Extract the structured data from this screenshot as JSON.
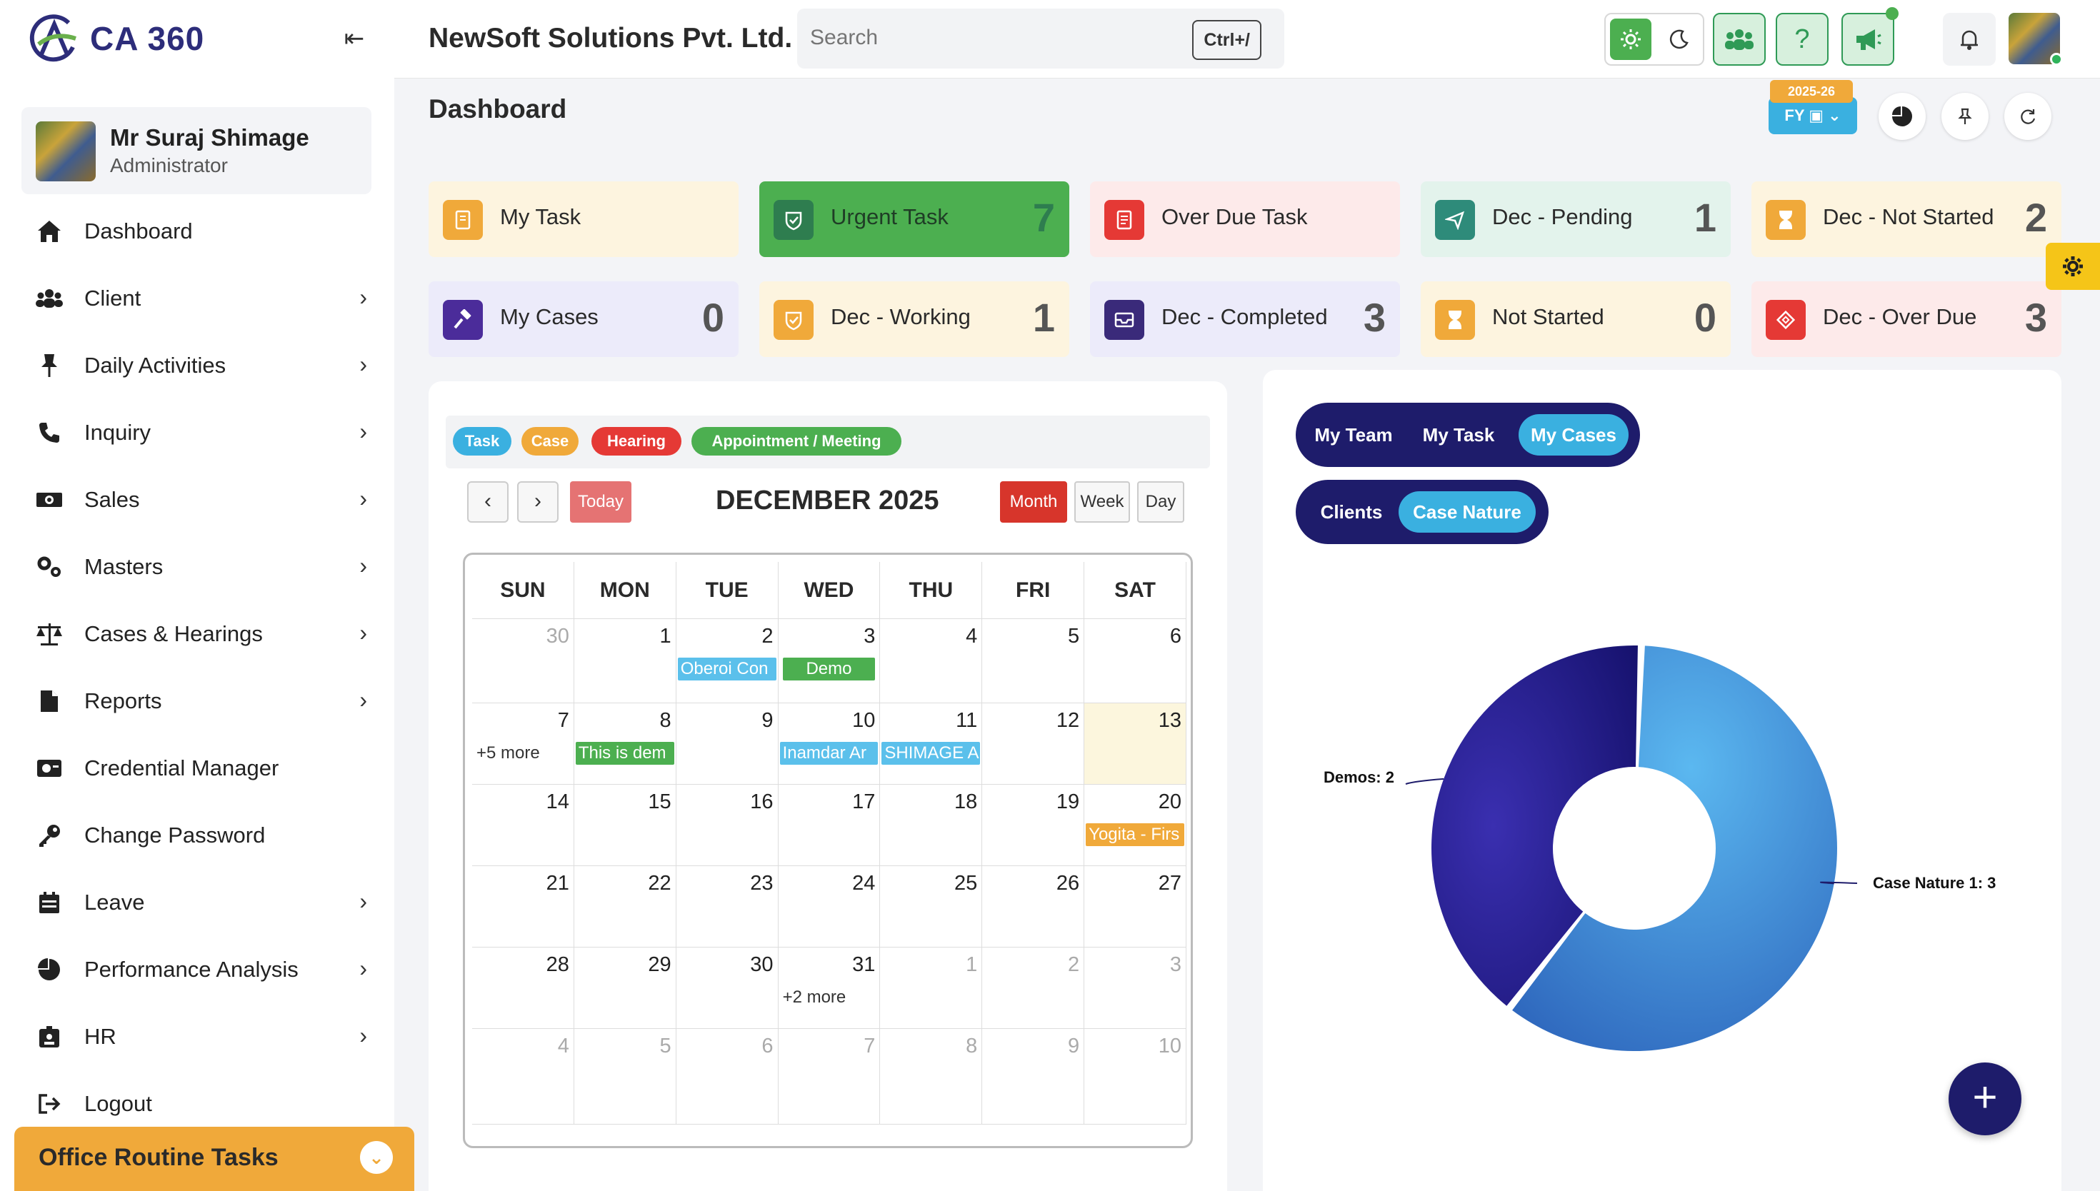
{
  "app": {
    "logo_text": "CA 360"
  },
  "profile": {
    "name": "Mr Suraj Shimage",
    "role": "Administrator"
  },
  "sidebar": {
    "items": [
      {
        "label": "Dashboard",
        "icon": "home-icon",
        "has_submenu": false
      },
      {
        "label": "Client",
        "icon": "users-icon",
        "has_submenu": true
      },
      {
        "label": "Daily Activities",
        "icon": "pin-icon",
        "has_submenu": true
      },
      {
        "label": "Inquiry",
        "icon": "phone-icon",
        "has_submenu": true
      },
      {
        "label": "Sales",
        "icon": "money-icon",
        "has_submenu": true
      },
      {
        "label": "Masters",
        "icon": "cogs-icon",
        "has_submenu": true
      },
      {
        "label": "Cases & Hearings",
        "icon": "scale-icon",
        "has_submenu": true
      },
      {
        "label": "Reports",
        "icon": "file-icon",
        "has_submenu": true
      },
      {
        "label": "Credential Manager",
        "icon": "id-card-icon",
        "has_submenu": false
      },
      {
        "label": "Change Password",
        "icon": "key-icon",
        "has_submenu": false
      },
      {
        "label": "Leave",
        "icon": "calendar-icon",
        "has_submenu": true
      },
      {
        "label": "Performance Analysis",
        "icon": "pie-icon",
        "has_submenu": true
      },
      {
        "label": "HR",
        "icon": "badge-icon",
        "has_submenu": true
      },
      {
        "label": "Logout",
        "icon": "logout-icon",
        "has_submenu": false
      }
    ],
    "office_routine": "Office Routine Tasks"
  },
  "topbar": {
    "company": "NewSoft Solutions Pvt. Ltd.",
    "search_placeholder": "Search",
    "search_shortcut": "Ctrl+/"
  },
  "dashboard": {
    "title": "Dashboard",
    "fy_year": "2025-26",
    "fy_label": "FY"
  },
  "cards": [
    {
      "label": "My Task",
      "value": "",
      "bg": "#fdf4df",
      "icon_bg": "#f0a93a",
      "icon": "notebook-icon"
    },
    {
      "label": "Urgent Task",
      "value": "7",
      "bg": "#4caf50",
      "icon_bg": "#2e7d4f",
      "icon": "shield-icon"
    },
    {
      "label": "Over Due Task",
      "value": "",
      "bg": "#fdeaea",
      "icon_bg": "#e53935",
      "icon": "document-icon"
    },
    {
      "label": "Dec - Pending",
      "value": "1",
      "bg": "#e3f3ec",
      "icon_bg": "#2e8b7a",
      "icon": "send-icon"
    },
    {
      "label": "Dec - Not Started",
      "value": "2",
      "bg": "#fdf4df",
      "icon_bg": "#f0a93a",
      "icon": "hourglass-icon"
    },
    {
      "label": "My Cases",
      "value": "0",
      "bg": "#ecebfa",
      "icon_bg": "#4b2c9a",
      "icon": "gavel-icon"
    },
    {
      "label": "Dec - Working",
      "value": "1",
      "bg": "#fdf4df",
      "icon_bg": "#f0a93a",
      "icon": "shield-icon"
    },
    {
      "label": "Dec - Completed",
      "value": "3",
      "bg": "#ecebfa",
      "icon_bg": "#3a2a7a",
      "icon": "inbox-icon"
    },
    {
      "label": "Not Started",
      "value": "0",
      "bg": "#fdf4df",
      "icon_bg": "#f0a93a",
      "icon": "hourglass-icon"
    },
    {
      "label": "Dec - Over Due",
      "value": "3",
      "bg": "#fdeaea",
      "icon_bg": "#e53935",
      "icon": "diamond-icon"
    }
  ],
  "calendar": {
    "filters": [
      {
        "label": "Task",
        "color": "#3ab0e0"
      },
      {
        "label": "Case",
        "color": "#f0a93a"
      },
      {
        "label": "Hearing",
        "color": "#e53935"
      },
      {
        "label": "Appointment / Meeting",
        "color": "#4caf50"
      }
    ],
    "prev": "‹",
    "next": "›",
    "today": "Today",
    "title": "DECEMBER 2025",
    "views": [
      "Month",
      "Week",
      "Day"
    ],
    "weekdays": [
      "SUN",
      "MON",
      "TUE",
      "WED",
      "THU",
      "FRI",
      "SAT"
    ],
    "weeks": [
      [
        {
          "d": "30",
          "other": true
        },
        {
          "d": "1"
        },
        {
          "d": "2",
          "event": "Oberoi Con",
          "color": "#5bc0eb"
        },
        {
          "d": "3",
          "event": "Demo",
          "color": "#4caf50",
          "center": true
        },
        {
          "d": "4"
        },
        {
          "d": "5"
        },
        {
          "d": "6"
        }
      ],
      [
        {
          "d": "7",
          "more": "+5 more"
        },
        {
          "d": "8",
          "event": "This is dem",
          "color": "#4caf50"
        },
        {
          "d": "9"
        },
        {
          "d": "10",
          "event": "Inamdar Ar",
          "color": "#5bc0eb"
        },
        {
          "d": "11",
          "event": "SHIMAGE A",
          "color": "#5bc0eb"
        },
        {
          "d": "12"
        },
        {
          "d": "13",
          "today": true
        }
      ],
      [
        {
          "d": "14"
        },
        {
          "d": "15"
        },
        {
          "d": "16"
        },
        {
          "d": "17"
        },
        {
          "d": "18"
        },
        {
          "d": "19"
        },
        {
          "d": "20",
          "event": "Yogita - Firs",
          "color": "#f0a93a"
        }
      ],
      [
        {
          "d": "21"
        },
        {
          "d": "22"
        },
        {
          "d": "23"
        },
        {
          "d": "24"
        },
        {
          "d": "25"
        },
        {
          "d": "26"
        },
        {
          "d": "27"
        }
      ],
      [
        {
          "d": "28"
        },
        {
          "d": "29"
        },
        {
          "d": "30"
        },
        {
          "d": "31",
          "more": "+2 more"
        },
        {
          "d": "1",
          "other": true
        },
        {
          "d": "2",
          "other": true
        },
        {
          "d": "3",
          "other": true
        }
      ],
      [
        {
          "d": "4",
          "other": true
        },
        {
          "d": "5",
          "other": true
        },
        {
          "d": "6",
          "other": true
        },
        {
          "d": "7",
          "other": true
        },
        {
          "d": "8",
          "other": true
        },
        {
          "d": "9",
          "other": true
        },
        {
          "d": "10",
          "other": true
        }
      ]
    ]
  },
  "chart_panel": {
    "tabs1": [
      {
        "label": "My Team",
        "active": false
      },
      {
        "label": "My Task",
        "active": false
      },
      {
        "label": "My Cases",
        "active": true
      }
    ],
    "tabs2": [
      {
        "label": "Clients",
        "active": false
      },
      {
        "label": "Case Nature",
        "active": true
      }
    ],
    "fab": "+"
  },
  "chart_data": {
    "type": "pie",
    "donut": true,
    "categories": [
      "Case Nature 1",
      "Demos"
    ],
    "values": [
      3,
      2
    ],
    "data_labels": [
      "Case Nature 1: 3",
      "Demos: 2"
    ],
    "colors": [
      "#3f8fdc",
      "#2a1f9a"
    ]
  }
}
